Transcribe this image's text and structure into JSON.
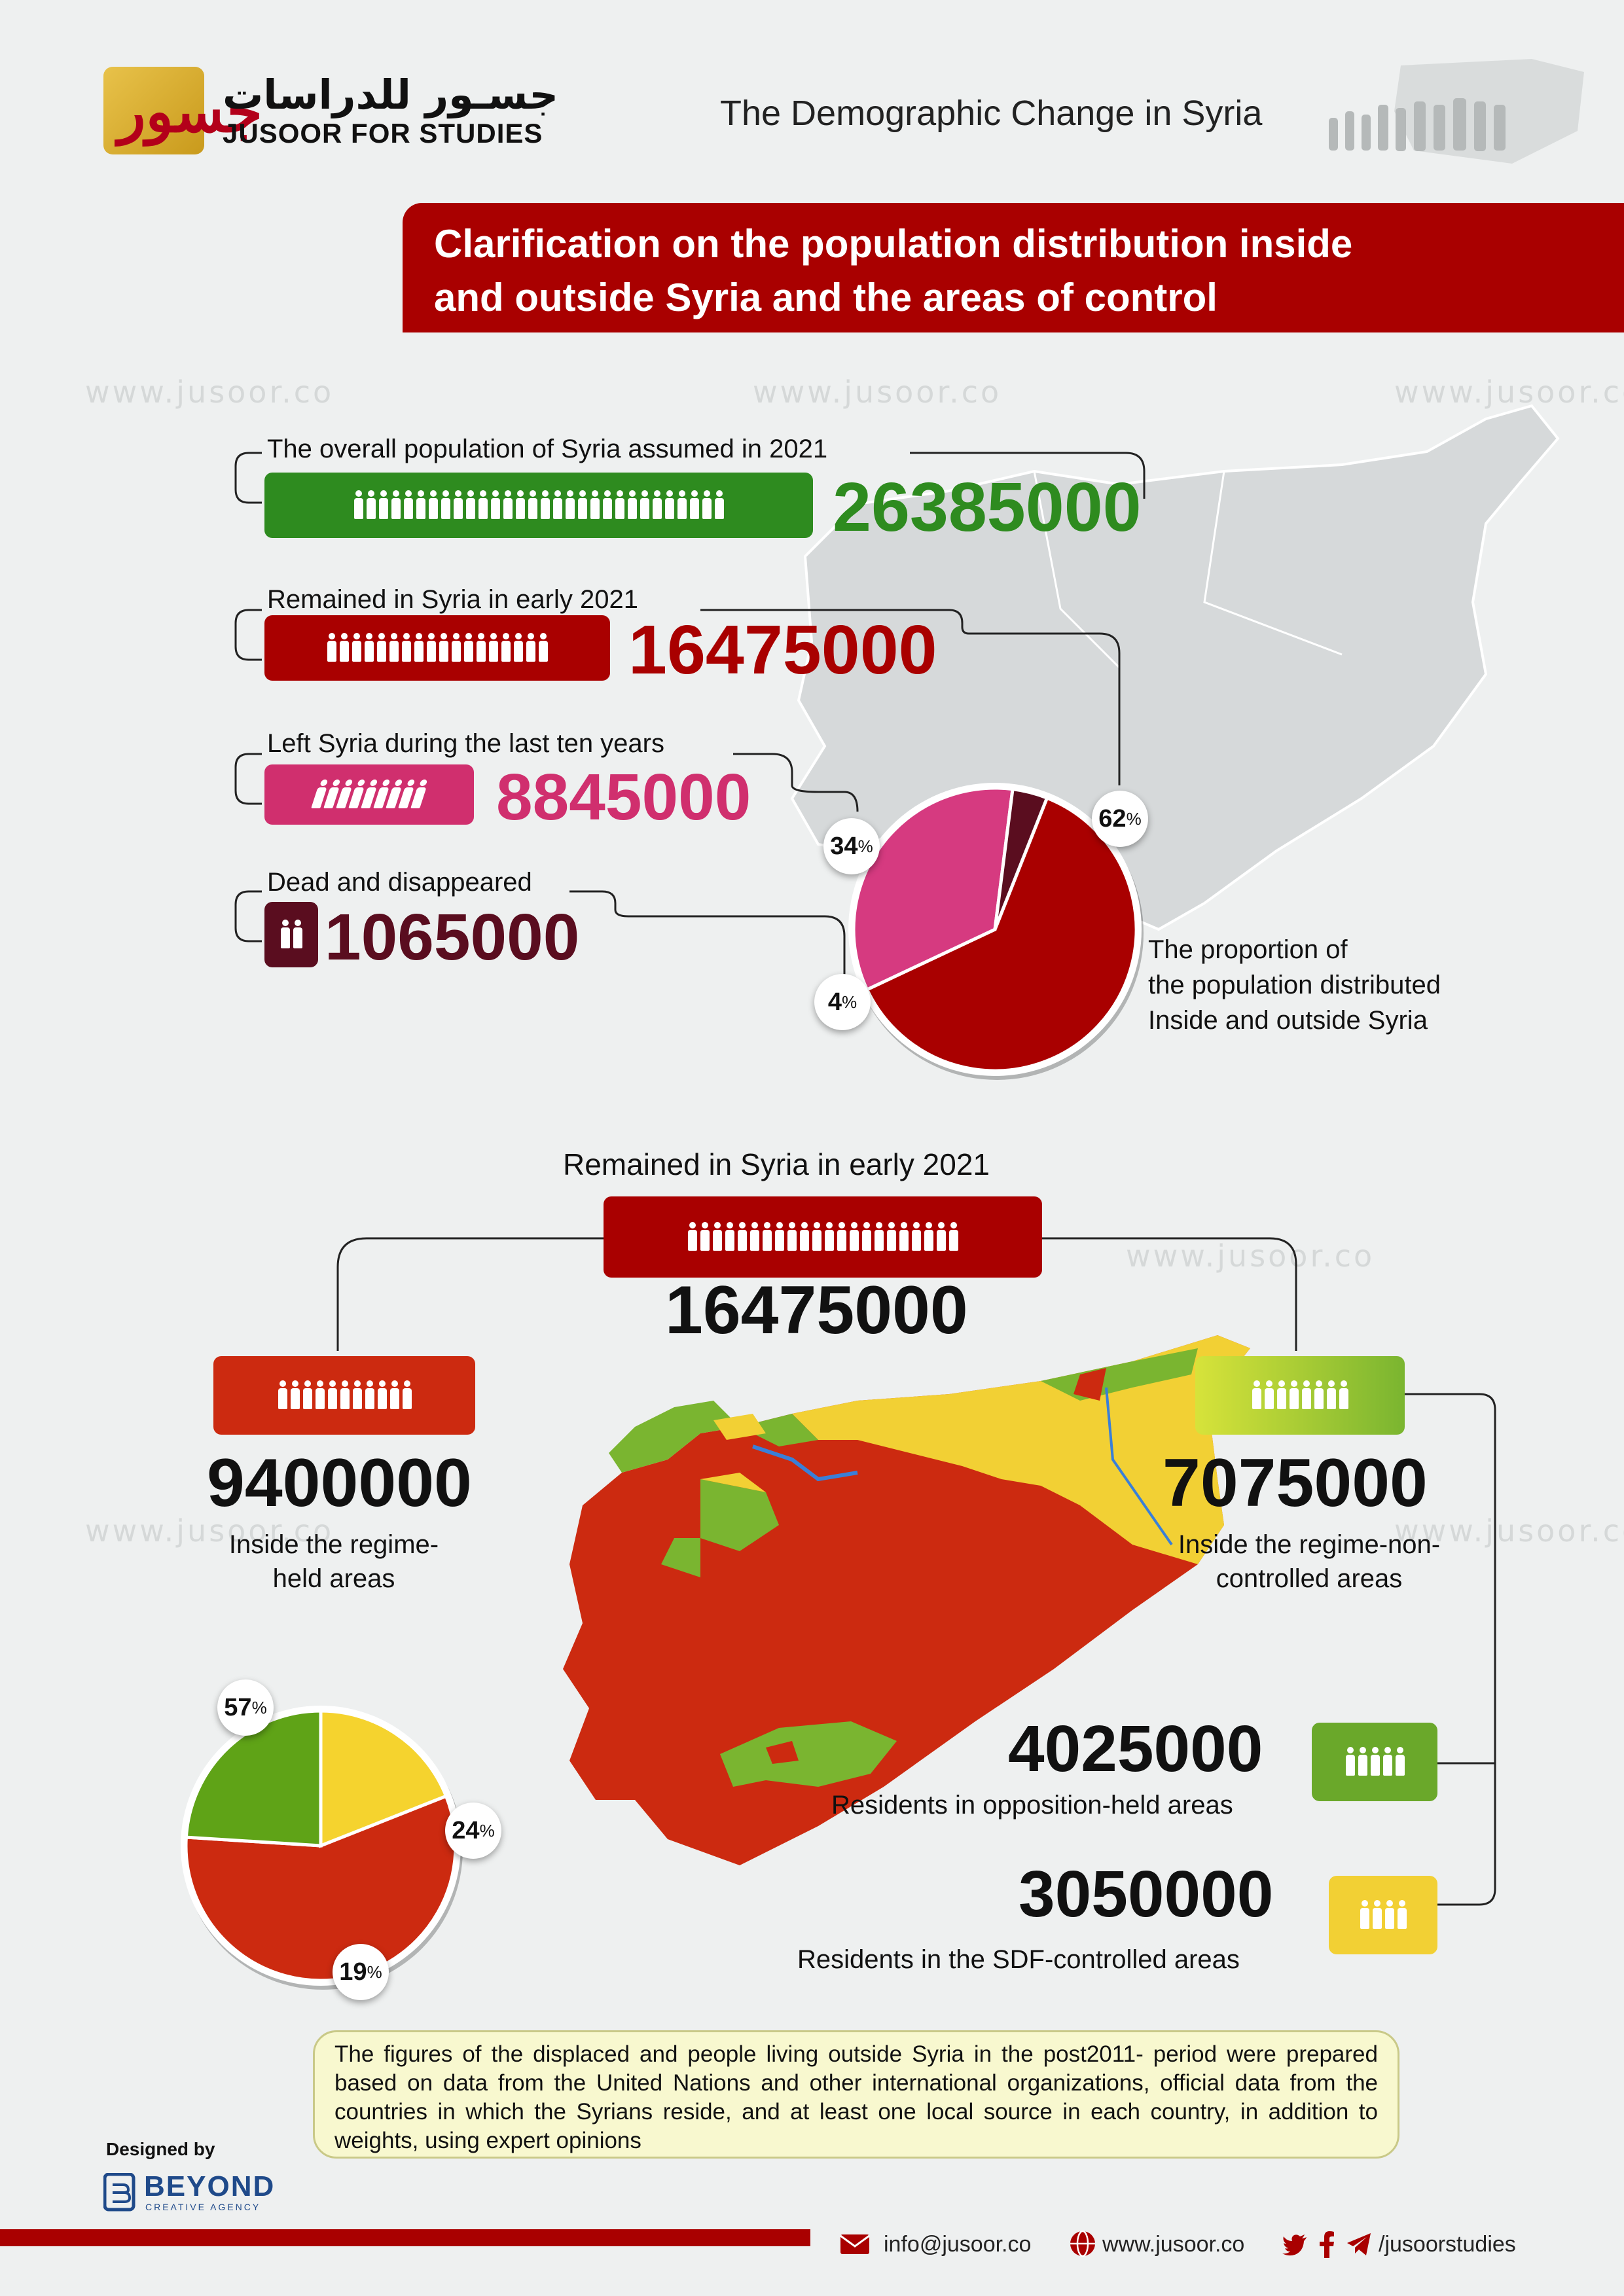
{
  "brand": {
    "logo_glyph": "جسور",
    "name_ar": "جسـور للدراسات",
    "name_en": "JUSOOR FOR STUDIES",
    "watermark": "www.jusoor.co"
  },
  "header": {
    "title": "The Demographic Change in Syria"
  },
  "banner": {
    "text": "Clarification on the population distribution inside\n and outside Syria and the areas of control"
  },
  "section1": {
    "overall": {
      "label": "The overall population of Syria assumed in 2021",
      "value": "26385000",
      "color": "#2e8b1f"
    },
    "remained": {
      "label": "Remained in Syria in early 2021",
      "value": "16475000",
      "color": "#a90000"
    },
    "left": {
      "label": "Left Syria during the last ten years",
      "value": "8845000",
      "color": "#d02f6e"
    },
    "dead": {
      "label": "Dead and disappeared",
      "value": "1065000",
      "color": "#5a0d1f"
    },
    "pie": {
      "caption": "The proportion of\nthe population distributed\nInside and outside Syria",
      "slices": [
        {
          "name": "Remained",
          "percent": 62,
          "label": "62",
          "color": "#a90000"
        },
        {
          "name": "Left",
          "percent": 34,
          "label": "34",
          "color": "#d63a80"
        },
        {
          "name": "Dead",
          "percent": 4,
          "label": "4",
          "color": "#5a0d1f"
        }
      ],
      "pct_sign": "%"
    }
  },
  "section2": {
    "title": "Remained in Syria in early 2021",
    "total": "16475000",
    "regime": {
      "value": "9400000",
      "label": "Inside the regime-\nheld areas",
      "color": "#cc2a10"
    },
    "non_regime": {
      "value": "7075000",
      "label": "Inside the regime-non-\ncontrolled areas",
      "color_a": "#d7e33a",
      "color_b": "#7ab530"
    },
    "opposition": {
      "value": "4025000",
      "label": "Residents in opposition-held areas",
      "color": "#6aa82a"
    },
    "sdf": {
      "value": "3050000",
      "label": "Residents in the SDF-controlled areas",
      "color": "#f2d034"
    },
    "pie": {
      "slices": [
        {
          "name": "Regime",
          "percent": 57,
          "label": "57",
          "color": "#cc2a10"
        },
        {
          "name": "Opposition",
          "percent": 24,
          "label": "24",
          "color": "#5fa317"
        },
        {
          "name": "SDF",
          "percent": 19,
          "label": "19",
          "color": "#f5d32e"
        }
      ],
      "pct_sign": "%"
    }
  },
  "note": {
    "text": "The figures of the displaced and people living outside Syria in the post2011- period were prepared based on data from the United Nations and other international organizations, official data from the countries in which the Syrians reside, and at least one local source in each country, in addition to weights, using expert opinions"
  },
  "credits": {
    "designed_by": "Designed by",
    "agency": "BEYOND",
    "agency_sub": "CREATIVE AGENCY"
  },
  "footer": {
    "email": "info@jusoor.co",
    "website": "www.jusoor.co",
    "social": "/jusoorstudies"
  }
}
